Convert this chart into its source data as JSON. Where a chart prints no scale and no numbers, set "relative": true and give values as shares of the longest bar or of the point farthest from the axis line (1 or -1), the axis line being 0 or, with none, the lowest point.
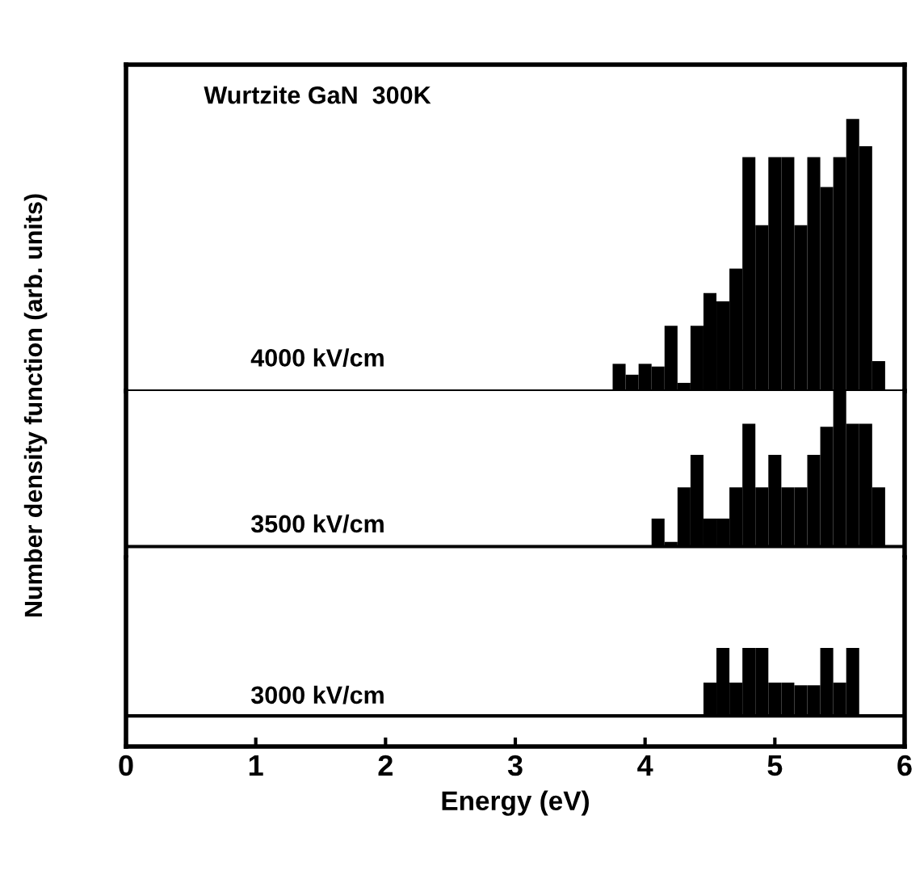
{
  "chart_data": [
    {
      "type": "bar",
      "relative": true,
      "title": "Wurtzite GaN  300K",
      "ylabel": "Number density function (arb. units)",
      "annotations": [
        "4000 kV/cm"
      ],
      "xlim": [
        0,
        6
      ],
      "tick_labels": false,
      "grid": false,
      "legend": false,
      "color": "#000000",
      "x": [
        3.8,
        3.9,
        4.0,
        4.1,
        4.2,
        4.3,
        4.4,
        4.5,
        4.6,
        4.7,
        4.8,
        4.9,
        5.0,
        5.1,
        5.2,
        5.3,
        5.4,
        5.5,
        5.6,
        5.7,
        5.8
      ],
      "values": [
        0.1,
        0.06,
        0.1,
        0.09,
        0.24,
        0.03,
        0.24,
        0.36,
        0.33,
        0.45,
        0.86,
        0.61,
        0.86,
        0.86,
        0.61,
        0.86,
        0.75,
        0.86,
        1.0,
        0.9,
        0.11
      ]
    },
    {
      "type": "bar",
      "relative": true,
      "annotations": [
        "3500 kV/cm"
      ],
      "xlim": [
        0,
        6
      ],
      "tick_labels": false,
      "grid": false,
      "legend": false,
      "color": "#000000",
      "x": [
        4.1,
        4.2,
        4.3,
        4.4,
        4.5,
        4.6,
        4.7,
        4.8,
        4.9,
        5.0,
        5.1,
        5.2,
        5.3,
        5.4,
        5.5,
        5.6,
        5.7,
        5.8
      ],
      "values": [
        0.18,
        0.03,
        0.38,
        0.59,
        0.18,
        0.18,
        0.38,
        0.79,
        0.38,
        0.59,
        0.38,
        0.38,
        0.59,
        0.77,
        1.0,
        0.79,
        0.79,
        0.38
      ]
    },
    {
      "type": "bar",
      "relative": true,
      "annotations": [
        "3000 kV/cm"
      ],
      "xlabel": "Energy (eV)",
      "xlim": [
        0,
        6
      ],
      "xticks": [
        0,
        1,
        2,
        3,
        4,
        5,
        6
      ],
      "tick_labels": "x",
      "grid": false,
      "legend": false,
      "color": "#000000",
      "x": [
        4.5,
        4.6,
        4.7,
        4.8,
        4.9,
        5.0,
        5.1,
        5.2,
        5.3,
        5.4,
        5.5,
        5.6
      ],
      "values": [
        0.49,
        1.0,
        0.49,
        1.0,
        1.0,
        0.49,
        0.49,
        0.45,
        0.45,
        1.0,
        0.49,
        1.0
      ]
    }
  ]
}
